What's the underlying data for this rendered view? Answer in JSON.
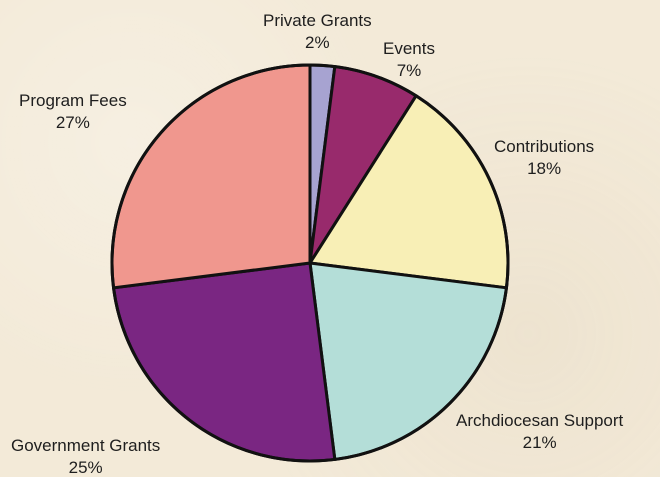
{
  "chart_data": {
    "type": "pie",
    "title": "",
    "slices": [
      {
        "label": "Private Grants",
        "value": 2,
        "percent_text": "2%",
        "color": "#a7a3d1"
      },
      {
        "label": "Events",
        "value": 7,
        "percent_text": "7%",
        "color": "#982a6c"
      },
      {
        "label": "Contributions",
        "value": 18,
        "percent_text": "18%",
        "color": "#f8efb6"
      },
      {
        "label": "Archdiocesan Support",
        "value": 21,
        "percent_text": "21%",
        "color": "#b4ded8"
      },
      {
        "label": "Government Grants",
        "value": 25,
        "percent_text": "25%",
        "color": "#7a2682"
      },
      {
        "label": "Program Fees",
        "value": 27,
        "percent_text": "27%",
        "color": "#f0978e"
      }
    ],
    "start_angle_deg": 0,
    "direction": "clockwise"
  }
}
